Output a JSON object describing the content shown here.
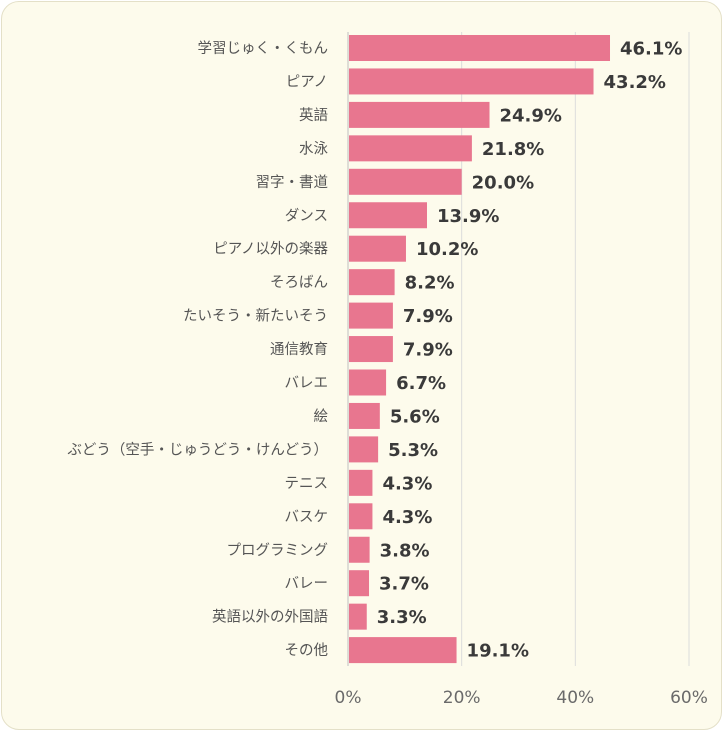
{
  "chart_data": {
    "type": "bar",
    "orientation": "horizontal",
    "title": "",
    "xlabel": "",
    "ylabel": "",
    "categories": [
      "学習じゅく・くもん",
      "ピアノ",
      "英語",
      "水泳",
      "習字・書道",
      "ダンス",
      "ピアノ以外の楽器",
      "そろばん",
      "たいそう・新たいそう",
      "通信教育",
      "バレエ",
      "絵",
      "ぶどう（空手・じゅうどう・けんどう）",
      "テニス",
      "バスケ",
      "プログラミング",
      "バレー",
      "英語以外の外国語",
      "その他"
    ],
    "values": [
      46.1,
      43.2,
      24.9,
      21.8,
      20.0,
      13.9,
      10.2,
      8.2,
      7.9,
      7.9,
      6.7,
      5.6,
      5.3,
      4.3,
      4.3,
      3.8,
      3.7,
      3.3,
      19.1
    ],
    "value_labels": [
      "46.1%",
      "43.2%",
      "24.9%",
      "21.8%",
      "20.0%",
      "13.9%",
      "10.2%",
      "8.2%",
      "7.9%",
      "7.9%",
      "6.7%",
      "5.6%",
      "5.3%",
      "4.3%",
      "4.3%",
      "3.8%",
      "3.7%",
      "3.3%",
      "19.1%"
    ],
    "xlim": [
      0,
      60
    ],
    "x_ticks": [
      0,
      20,
      40,
      60
    ],
    "x_tick_labels": [
      "0%",
      "20%",
      "40%",
      "60%"
    ],
    "grid": "vertical",
    "legend": "none",
    "bar_color": "#e8768f",
    "grid_color": "#dcdcdc",
    "axis_color": "#bfbfbf"
  }
}
